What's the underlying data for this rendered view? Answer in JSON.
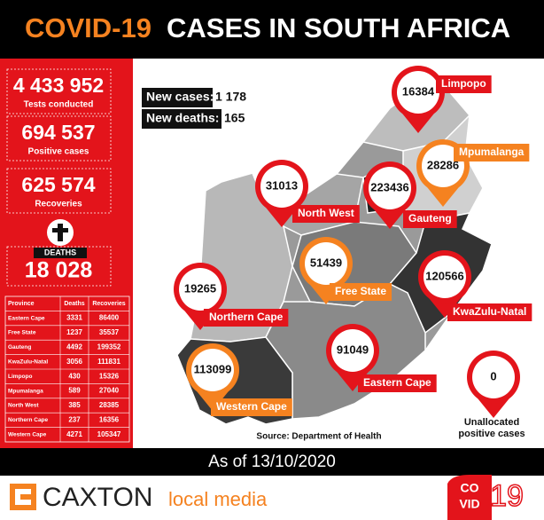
{
  "header": {
    "title_highlight": "COVID-19",
    "title_rest": "CASES IN SOUTH AFRICA"
  },
  "stats": [
    {
      "value": "4 433 952",
      "label": "Tests conducted"
    },
    {
      "value": "694 537",
      "label": "Positive cases"
    },
    {
      "value": "625 574",
      "label": "Recoveries"
    }
  ],
  "deaths": {
    "label": "DEATHS",
    "value": "18 028"
  },
  "table": {
    "columns": [
      "Province",
      "Deaths",
      "Recoveries"
    ],
    "rows": [
      [
        "Eastern Cape",
        "3331",
        "86400"
      ],
      [
        "Free State",
        "1237",
        "35537"
      ],
      [
        "Gauteng",
        "4492",
        "199352"
      ],
      [
        "KwaZulu-Natal",
        "3056",
        "111831"
      ],
      [
        "Limpopo",
        "430",
        "15326"
      ],
      [
        "Mpumalanga",
        "589",
        "27040"
      ],
      [
        "North West",
        "385",
        "28385"
      ],
      [
        "Northern Cape",
        "237",
        "16356"
      ],
      [
        "Western Cape",
        "4271",
        "105347"
      ]
    ]
  },
  "new_cases": {
    "label": "New cases:",
    "value": "1 178"
  },
  "new_deaths": {
    "label": "New deaths:",
    "value": "165"
  },
  "pins": [
    {
      "value": "16384",
      "province": "Limpopo",
      "color": "#e3141b"
    },
    {
      "value": "28286",
      "province": "Mpumalanga",
      "color": "#f58220"
    },
    {
      "value": "223436",
      "province": "Gauteng",
      "color": "#e3141b"
    },
    {
      "value": "31013",
      "province": "North West",
      "color": "#e3141b"
    },
    {
      "value": "51439",
      "province": "Free State",
      "color": "#f58220"
    },
    {
      "value": "120566",
      "province": "KwaZulu-Natal",
      "color": "#e3141b"
    },
    {
      "value": "19265",
      "province": "Northern Cape",
      "color": "#e3141b"
    },
    {
      "value": "113099",
      "province": "Western Cape",
      "color": "#f58220"
    },
    {
      "value": "91049",
      "province": "Eastern Cape",
      "color": "#e3141b"
    }
  ],
  "unallocated": {
    "value": "0",
    "label_line1": "Unallocated",
    "label_line2": "positive cases"
  },
  "source": "Source: Department of Health",
  "date": "As of 13/10/2020",
  "footer": {
    "brand": "CAXTON",
    "brand_sub": "local media",
    "logo_top": "CO",
    "logo_bottom": "VID",
    "logo_num": "19"
  }
}
